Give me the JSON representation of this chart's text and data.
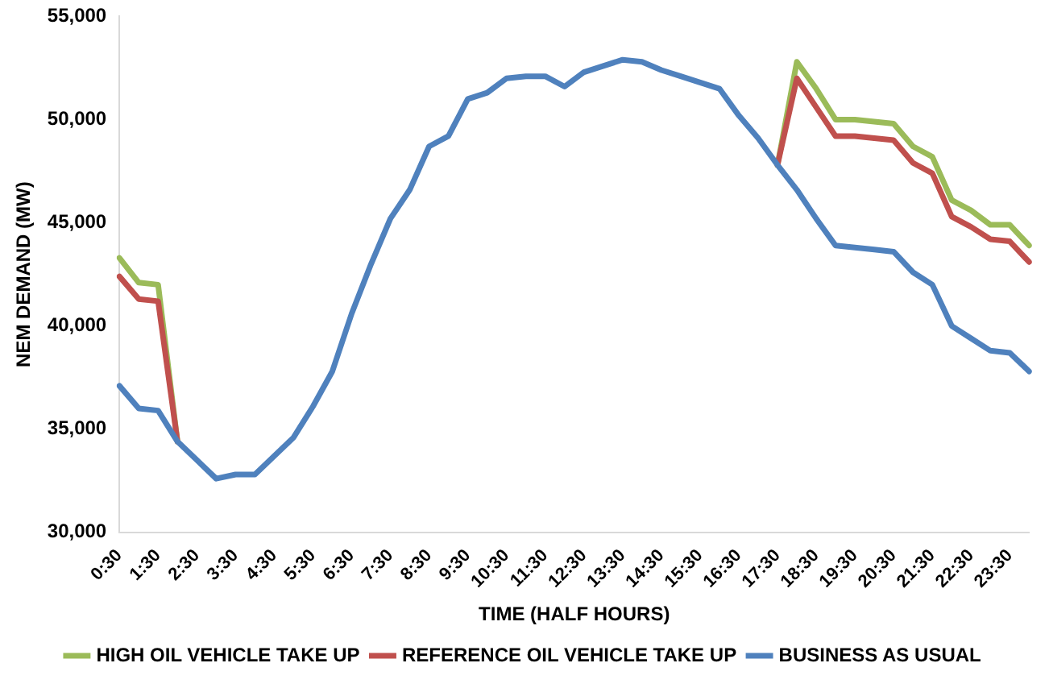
{
  "chart_data": {
    "type": "line",
    "xlabel": "TIME (HALF HOURS)",
    "ylabel": "NEM DEMAND (MW)",
    "categories": [
      "0:30",
      null,
      "1:30",
      null,
      "2:30",
      null,
      "3:30",
      null,
      "4:30",
      null,
      "5:30",
      null,
      "6:30",
      null,
      "7:30",
      null,
      "8:30",
      null,
      "9:30",
      null,
      "10:30",
      null,
      "11:30",
      null,
      "12:30",
      null,
      "13:30",
      null,
      "14:30",
      null,
      "15:30",
      null,
      "16:30",
      null,
      "17:30",
      null,
      "18:30",
      null,
      "19:30",
      null,
      "20:30",
      null,
      "21:30",
      null,
      "22:30",
      null,
      "23:30",
      null
    ],
    "series": [
      {
        "name": "HIGH OIL VEHICLE TAKE UP",
        "color": "#9bbb59",
        "values": [
          43300,
          42100,
          42000,
          34400,
          null,
          null,
          null,
          null,
          null,
          null,
          null,
          null,
          null,
          null,
          null,
          null,
          null,
          null,
          null,
          null,
          null,
          null,
          null,
          null,
          null,
          null,
          null,
          null,
          null,
          null,
          null,
          null,
          null,
          null,
          47800,
          52800,
          51500,
          50000,
          50000,
          49900,
          49800,
          48700,
          48200,
          46100,
          45600,
          44900,
          44900,
          43900
        ]
      },
      {
        "name": "REFERENCE OIL VEHICLE TAKE UP",
        "color": "#c0504d",
        "values": [
          42400,
          41300,
          41200,
          34400,
          null,
          null,
          null,
          null,
          null,
          null,
          null,
          null,
          null,
          null,
          null,
          null,
          null,
          null,
          null,
          null,
          null,
          null,
          null,
          null,
          null,
          null,
          null,
          null,
          null,
          null,
          null,
          null,
          null,
          null,
          47800,
          52000,
          50600,
          49200,
          49200,
          49100,
          49000,
          47900,
          47400,
          45300,
          44800,
          44200,
          44100,
          43100
        ]
      },
      {
        "name": "BUSINESS AS USUAL",
        "color": "#4f81bd",
        "values": [
          37100,
          36000,
          35900,
          34400,
          33500,
          32600,
          32800,
          32800,
          33700,
          34600,
          36100,
          37800,
          40600,
          43000,
          45200,
          46600,
          48700,
          49200,
          51000,
          51300,
          52000,
          52100,
          52100,
          51600,
          52300,
          52600,
          52900,
          52800,
          52400,
          52100,
          51800,
          51500,
          50200,
          49100,
          47800,
          46600,
          45200,
          43900,
          43800,
          43700,
          43600,
          42600,
          42000,
          40000,
          39400,
          38800,
          38700,
          37800
        ]
      }
    ],
    "ylim": [
      30000,
      55000
    ],
    "yticks": [
      {
        "value": 30000,
        "label": "30,000"
      },
      {
        "value": 35000,
        "label": "35,000"
      },
      {
        "value": 40000,
        "label": "40,000"
      },
      {
        "value": 45000,
        "label": "45,000"
      },
      {
        "value": 50000,
        "label": "50,000"
      },
      {
        "value": 55000,
        "label": "55,000"
      }
    ],
    "grid": false,
    "legend": "bottom",
    "marker": "none",
    "line_style": "solid"
  }
}
